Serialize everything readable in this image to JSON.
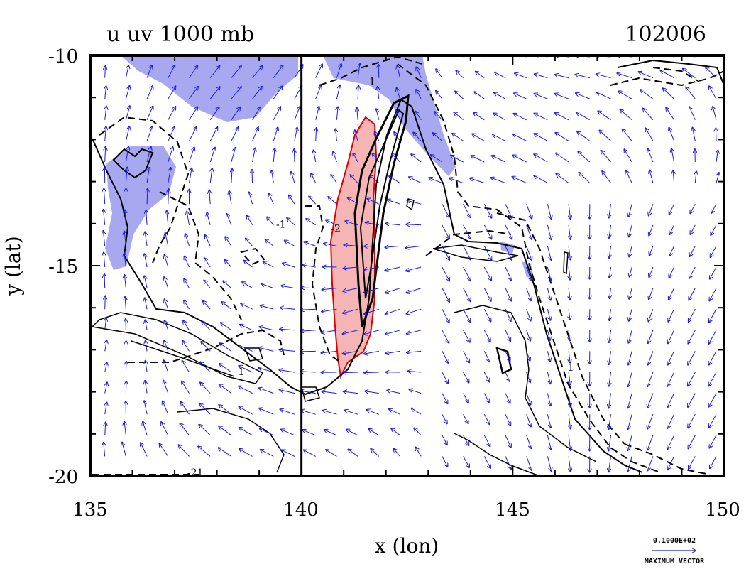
{
  "chart_data": {
    "type": "contour",
    "title": "u uv 1000 mb",
    "date_label": "102006",
    "xlabel": "x (lon)",
    "ylabel": "y (lat)",
    "xlim": [
      135,
      150
    ],
    "ylim": [
      -20,
      -10
    ],
    "xticks": [
      135,
      140,
      145,
      150
    ],
    "yticks": [
      -10,
      -15,
      -20
    ],
    "reference_line_x": 140,
    "contour_labels": [
      {
        "text": "1",
        "x": 141.6,
        "y": -10.7
      },
      {
        "text": "-1",
        "x": 139.4,
        "y": -14.1
      },
      {
        "text": "-2",
        "x": 140.7,
        "y": -14.2
      },
      {
        "text": "1",
        "x": 138.5,
        "y": -17.6
      },
      {
        "text": "1",
        "x": 146.3,
        "y": -17.5
      },
      {
        "text": "-21",
        "x": 137.3,
        "y": -20.0
      }
    ],
    "shading": {
      "positive_color": "#f5b5b5",
      "positive_edge": "#e00000",
      "negative_color": "#a8a8f0"
    },
    "vector_color": "#1a1ae6",
    "contour_color": "#000000",
    "legend": {
      "value_text": "0.1000E+02",
      "label_text": "MAXIMUM VECTOR"
    }
  }
}
